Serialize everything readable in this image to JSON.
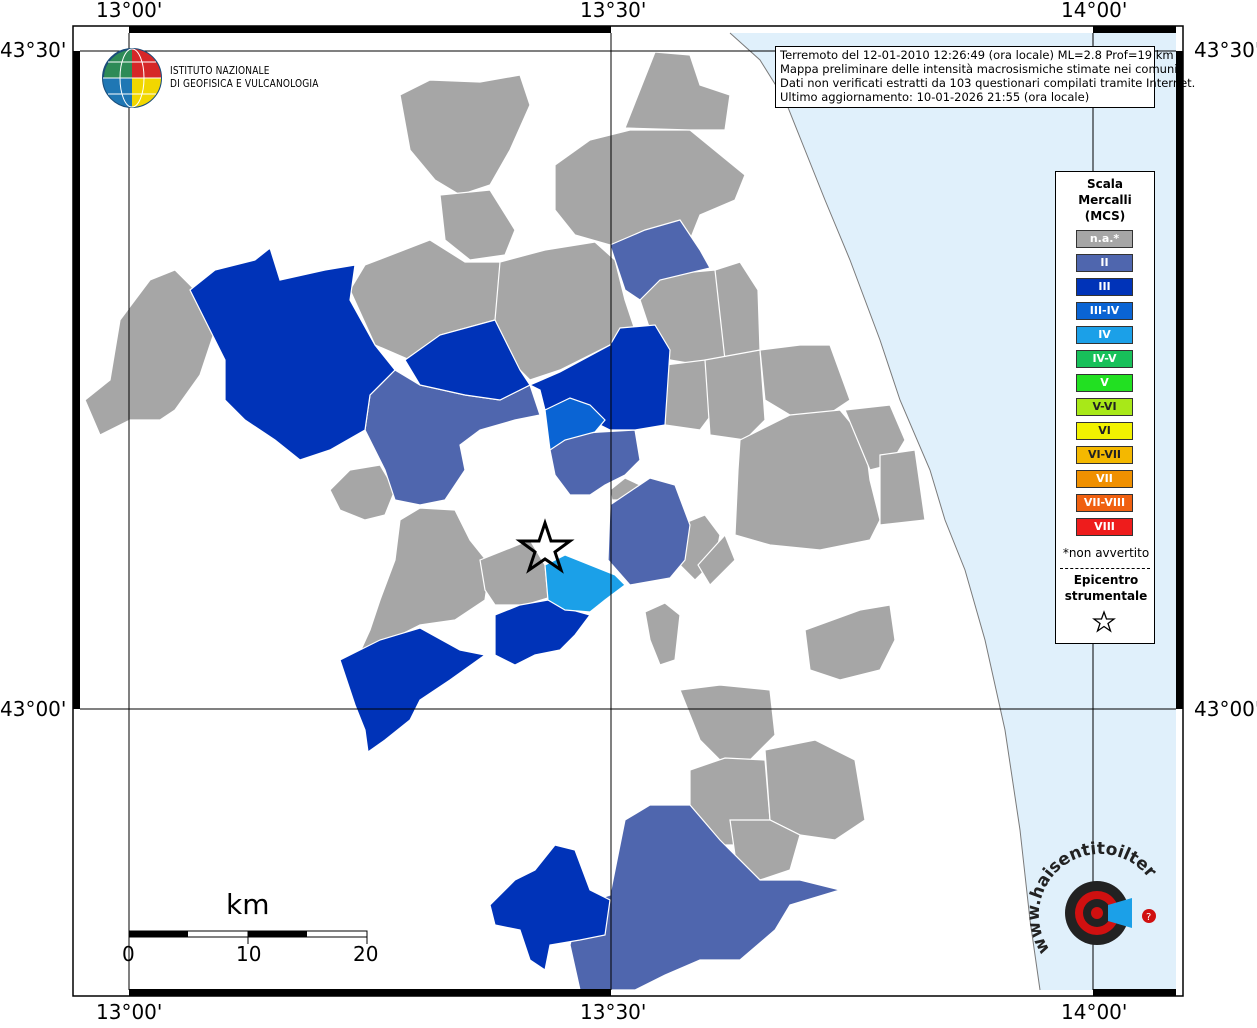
{
  "map": {
    "coords": {
      "top": [
        "13°00'",
        "13°30'",
        "14°00'"
      ],
      "bottom": [
        "13°00'",
        "13°30'",
        "14°00'"
      ],
      "left": [
        "43°30'",
        "43°00'"
      ],
      "right": [
        "43°30'",
        "43°00'"
      ]
    },
    "info": {
      "line1": "Terremoto del 12-01-2010 12:26:49 (ora locale) ML=2.8 Prof=19 km",
      "line2": "Mappa preliminare delle intensità macrosismiche stimate nei comuni",
      "line3": "Dati non verificati estratti da 103 questionari compilati tramite Internet.",
      "line4": "Ultimo aggiornamento: 10-01-2026 21:55 (ora locale)"
    },
    "ingv": {
      "line1": "ISTITUTO NAZIONALE",
      "line2": "DI GEOFISICA E VULCANOLOGIA"
    },
    "scale": {
      "unit": "km",
      "ticks": [
        "0",
        "10",
        "20"
      ]
    },
    "legend": {
      "title1": "Scala",
      "title2": "Mercalli",
      "title3": "(MCS)",
      "items": [
        {
          "label": "n.a.*",
          "color": "#a6a6a6"
        },
        {
          "label": "II",
          "color": "#4f66ae"
        },
        {
          "label": "III",
          "color": "#0033b8"
        },
        {
          "label": "III-IV",
          "color": "#0a64d4"
        },
        {
          "label": "IV",
          "color": "#1ba0e8"
        },
        {
          "label": "IV-V",
          "color": "#18c05a"
        },
        {
          "label": "V",
          "color": "#22e022"
        },
        {
          "label": "V-VI",
          "color": "#a8e818"
        },
        {
          "label": "VI",
          "color": "#f2f200"
        },
        {
          "label": "VI-VII",
          "color": "#f4b800"
        },
        {
          "label": "VII",
          "color": "#f09000"
        },
        {
          "label": "VII-VIII",
          "color": "#f06010"
        },
        {
          "label": "VIII",
          "color": "#ee1c1c"
        }
      ],
      "note": "*non avvertito",
      "epicenter1": "Epicentro",
      "epicenter2": "strumentale"
    },
    "logo": {
      "text": "www.haisentitoilterremoto.it"
    },
    "colors": {
      "sea": "#e0f0fb",
      "na": "#a6a6a6",
      "ii": "#4f66ae",
      "iii": "#0033b8",
      "iiiiv": "#0a64d4",
      "iv": "#1ba0e8"
    }
  }
}
